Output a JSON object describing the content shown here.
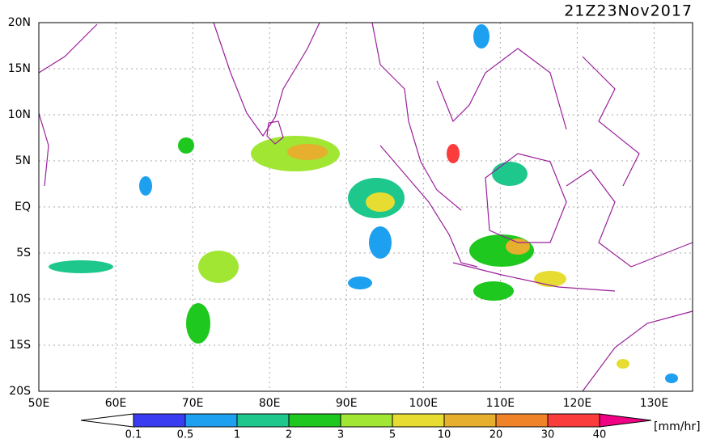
{
  "title": "21Z23Nov2017",
  "map": {
    "lon_labels": [
      "50E",
      "60E",
      "70E",
      "80E",
      "90E",
      "100E",
      "110E",
      "120E",
      "130E"
    ],
    "lat_labels": [
      "20N",
      "15N",
      "10N",
      "5N",
      "EQ",
      "5S",
      "10S",
      "15S",
      "20S"
    ]
  },
  "colorbar": {
    "levels": [
      0.1,
      0.5,
      1,
      2,
      3,
      5,
      10,
      20,
      30,
      40
    ],
    "colors": [
      "#ffffff",
      "#3a3cf2",
      "#1ea0f0",
      "#1ec88c",
      "#1ec81e",
      "#a0e632",
      "#e6dc32",
      "#e6af2d",
      "#f08228",
      "#fa3c3c",
      "#f00082"
    ],
    "unit": "[mm/hr]"
  }
}
